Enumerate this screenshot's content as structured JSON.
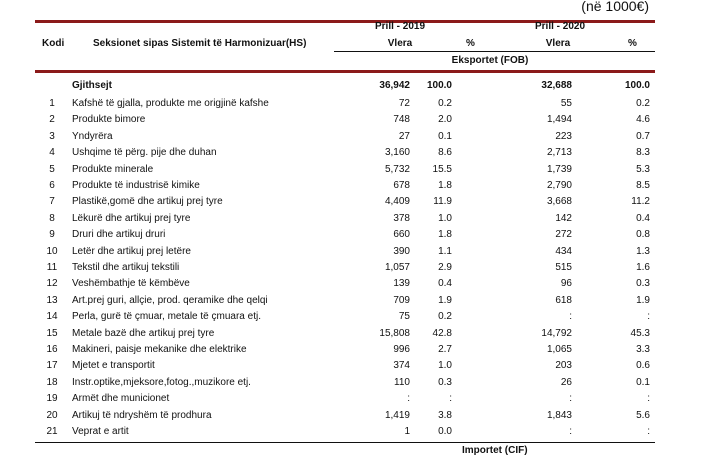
{
  "unit": "(në 1000€)",
  "header": {
    "code": "Kodi",
    "section": "Seksionet sipas Sistemit të Harmonizuar(HS)",
    "period1": "Prill - 2019",
    "period2": "Prill - 2020",
    "value": "Vlera",
    "pct": "%",
    "flow": "Eksportet (FOB)"
  },
  "total": {
    "label": "Gjithsejt",
    "v2019": "36,942",
    "p2019": "100.0",
    "v2020": "32,688",
    "p2020": "100.0"
  },
  "rows": [
    {
      "code": "1",
      "name": "Kafshë të gjalla, produkte me origjinë kafshe",
      "v2019": "72",
      "p2019": "0.2",
      "v2020": "55",
      "p2020": "0.2"
    },
    {
      "code": "2",
      "name": "Produkte bimore",
      "v2019": "748",
      "p2019": "2.0",
      "v2020": "1,494",
      "p2020": "4.6"
    },
    {
      "code": "3",
      "name": "Yndyrëra",
      "v2019": "27",
      "p2019": "0.1",
      "v2020": "223",
      "p2020": "0.7"
    },
    {
      "code": "4",
      "name": "Ushqime të përg. pije dhe duhan",
      "v2019": "3,160",
      "p2019": "8.6",
      "v2020": "2,713",
      "p2020": "8.3"
    },
    {
      "code": "5",
      "name": "Produkte minerale",
      "v2019": "5,732",
      "p2019": "15.5",
      "v2020": "1,739",
      "p2020": "5.3"
    },
    {
      "code": "6",
      "name": "Produkte të industrisë kimike",
      "v2019": "678",
      "p2019": "1.8",
      "v2020": "2,790",
      "p2020": "8.5"
    },
    {
      "code": "7",
      "name": "Plastikë,gomë dhe artikuj prej tyre",
      "v2019": "4,409",
      "p2019": "11.9",
      "v2020": "3,668",
      "p2020": "11.2"
    },
    {
      "code": "8",
      "name": "Lëkurë dhe artikuj prej tyre",
      "v2019": "378",
      "p2019": "1.0",
      "v2020": "142",
      "p2020": "0.4"
    },
    {
      "code": "9",
      "name": "Druri dhe artikuj druri",
      "v2019": "660",
      "p2019": "1.8",
      "v2020": "272",
      "p2020": "0.8"
    },
    {
      "code": "10",
      "name": "Letër dhe artikuj prej letëre",
      "v2019": "390",
      "p2019": "1.1",
      "v2020": "434",
      "p2020": "1.3"
    },
    {
      "code": "11",
      "name": "Tekstil dhe artikuj tekstili",
      "v2019": "1,057",
      "p2019": "2.9",
      "v2020": "515",
      "p2020": "1.6"
    },
    {
      "code": "12",
      "name": "Veshëmbathje të këmbëve",
      "v2019": "139",
      "p2019": "0.4",
      "v2020": "96",
      "p2020": "0.3"
    },
    {
      "code": "13",
      "name": "Art.prej guri, allçie, prod. qeramike dhe qelqi",
      "v2019": "709",
      "p2019": "1.9",
      "v2020": "618",
      "p2020": "1.9"
    },
    {
      "code": "14",
      "name": "Perla, gurë të çmuar, metale të çmuara etj.",
      "v2019": "75",
      "p2019": "0.2",
      "v2020": ":",
      "p2020": ":"
    },
    {
      "code": "15",
      "name": "Metale bazë dhe artikuj prej tyre",
      "v2019": "15,808",
      "p2019": "42.8",
      "v2020": "14,792",
      "p2020": "45.3"
    },
    {
      "code": "16",
      "name": "Makineri, paisje mekanike dhe elektrike",
      "v2019": "996",
      "p2019": "2.7",
      "v2020": "1,065",
      "p2020": "3.3"
    },
    {
      "code": "17",
      "name": "Mjetet e transportit",
      "v2019": "374",
      "p2019": "1.0",
      "v2020": "203",
      "p2020": "0.6"
    },
    {
      "code": "18",
      "name": "Instr.optike,mjeksore,fotog.,muzikore etj.",
      "v2019": "110",
      "p2019": "0.3",
      "v2020": "26",
      "p2020": "0.1"
    },
    {
      "code": "19",
      "name": "Armët dhe municionet",
      "v2019": ":",
      "p2019": ":",
      "v2020": ":",
      "p2020": ":"
    },
    {
      "code": "20",
      "name": "Artikuj të ndryshëm të prodhura",
      "v2019": "1,419",
      "p2019": "3.8",
      "v2020": "1,843",
      "p2020": "5.6"
    },
    {
      "code": "21",
      "name": "Veprat e artit",
      "v2019": "1",
      "p2019": "0.0",
      "v2020": ":",
      "p2020": ":"
    }
  ],
  "next_section": "Importet (CIF)"
}
